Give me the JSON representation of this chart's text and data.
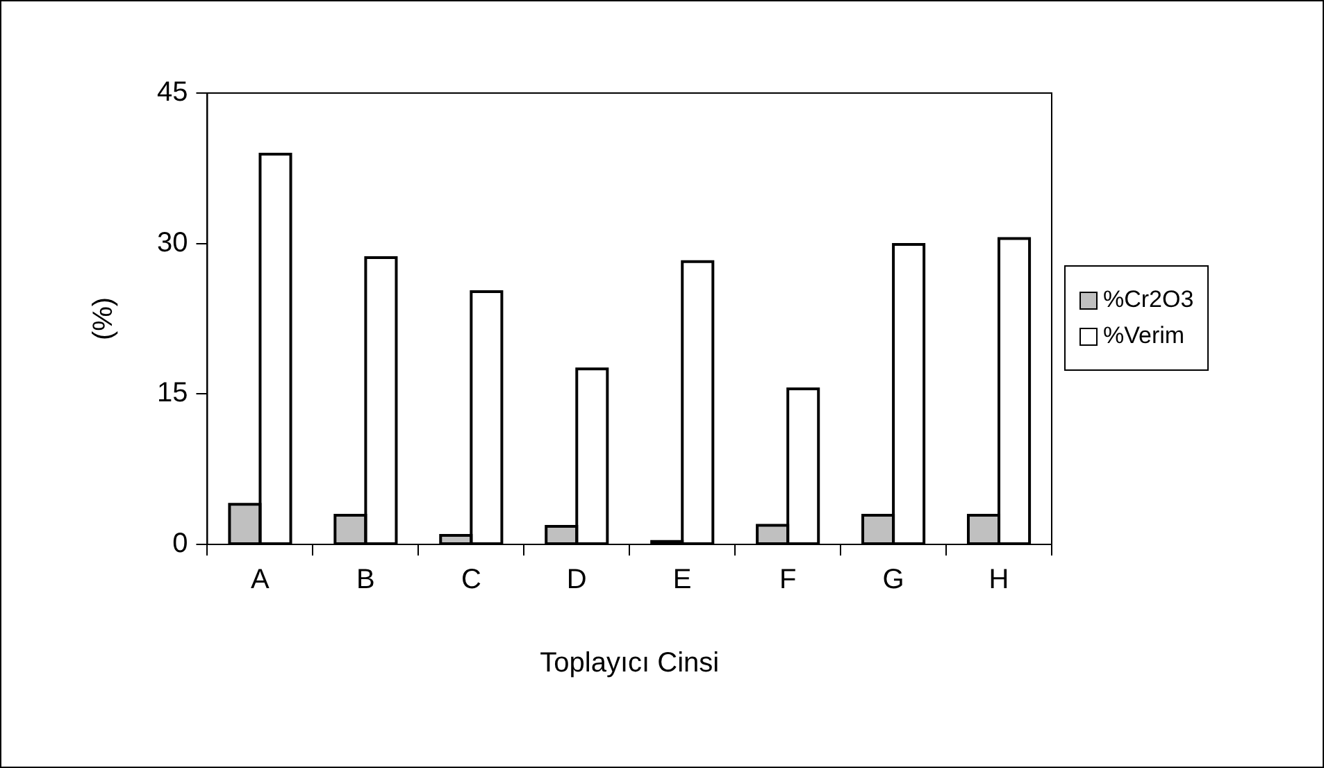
{
  "chart_data": {
    "type": "bar",
    "xlabel": "Toplayıcı Cinsi",
    "ylabel": "(%)",
    "categories": [
      "A",
      "B",
      "C",
      "D",
      "E",
      "F",
      "G",
      "H"
    ],
    "series": [
      {
        "name": "%Cr2O3",
        "color": "#c0c0c0",
        "values": [
          4.0,
          2.9,
          0.9,
          1.8,
          0.3,
          1.9,
          2.9,
          2.9
        ]
      },
      {
        "name": "%Verim",
        "color": "#ffffff",
        "values": [
          38.9,
          28.6,
          25.2,
          17.5,
          28.2,
          15.5,
          29.9,
          30.5
        ]
      }
    ],
    "ylim": [
      0,
      45
    ],
    "yticks": [
      0,
      15,
      30,
      45
    ],
    "grid": false,
    "legend": "right"
  }
}
